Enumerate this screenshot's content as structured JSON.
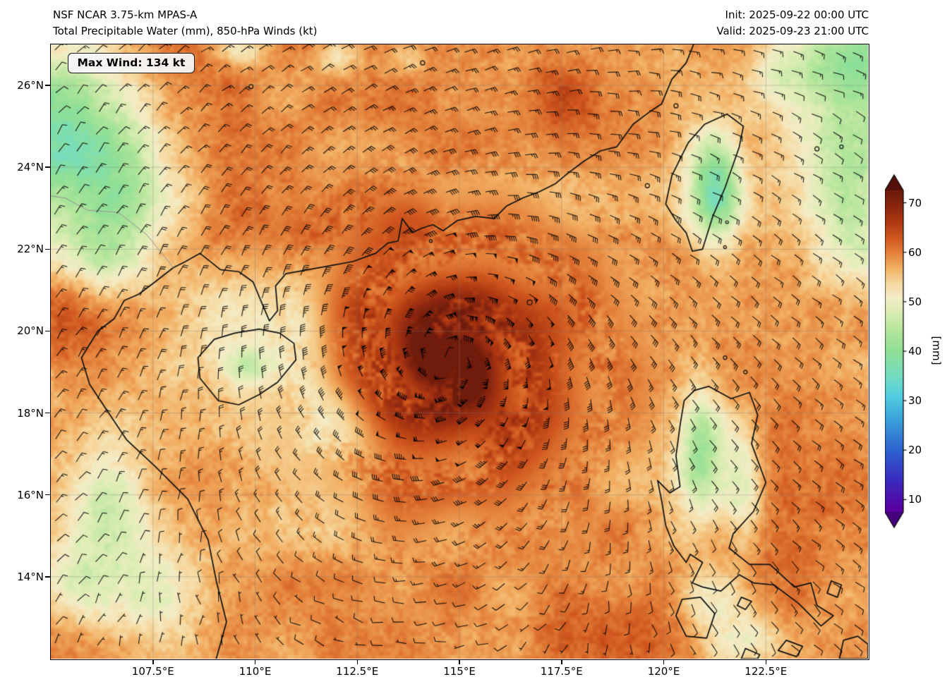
{
  "header": {
    "model_line": "NSF NCAR 3.75-km MPAS-A",
    "variable_line": "Total Precipitable Water (mm), 850-hPa Winds (kt)",
    "init_line": "Init: 2025-09-22 00:00 UTC",
    "valid_line": "Valid: 2025-09-23 21:00 UTC"
  },
  "badge": {
    "max_wind_label": "Max Wind: 134 kt"
  },
  "axes": {
    "lat_ticks": [
      {
        "value": 26,
        "label": "26°N"
      },
      {
        "value": 24,
        "label": "24°N"
      },
      {
        "value": 22,
        "label": "22°N"
      },
      {
        "value": 20,
        "label": "20°N"
      },
      {
        "value": 18,
        "label": "18°N"
      },
      {
        "value": 16,
        "label": "16°N"
      },
      {
        "value": 14,
        "label": "14°N"
      }
    ],
    "lon_ticks": [
      {
        "value": 107.5,
        "label": "107.5°E"
      },
      {
        "value": 110,
        "label": "110°E"
      },
      {
        "value": 112.5,
        "label": "112.5°E"
      },
      {
        "value": 115,
        "label": "115°E"
      },
      {
        "value": 117.5,
        "label": "117.5°E"
      },
      {
        "value": 120,
        "label": "120°E"
      },
      {
        "value": 122.5,
        "label": "122.5°E"
      }
    ]
  },
  "colorbar": {
    "unit_label": "[mm]",
    "range": [
      7.5,
      72.5
    ],
    "ticks": [
      {
        "value": 70,
        "label": "70"
      },
      {
        "value": 60,
        "label": "60"
      },
      {
        "value": 50,
        "label": "50"
      },
      {
        "value": 40,
        "label": "40"
      },
      {
        "value": 30,
        "label": "30"
      },
      {
        "value": 20,
        "label": "20"
      },
      {
        "value": 10,
        "label": "10"
      }
    ],
    "over_color": "#541109",
    "under_color": "#47007e"
  },
  "chart_data": {
    "type": "heatmap",
    "title": "Total Precipitable Water (mm), 850-hPa Winds (kt)",
    "model": "NSF NCAR 3.75-km MPAS-A",
    "init_utc": "2025-09-22 00:00 UTC",
    "valid_utc": "2025-09-23 21:00 UTC",
    "units": "mm",
    "wind_level": "850-hPa",
    "wind_units": "kt",
    "max_wind_kt": 134,
    "lon_range_e": [
      105,
      125
    ],
    "lat_range_n": [
      12,
      27
    ],
    "lon_tick_values_e": [
      107.5,
      110,
      112.5,
      115,
      117.5,
      120,
      122.5
    ],
    "lat_tick_values_n": [
      14,
      16,
      18,
      20,
      22,
      24,
      26
    ],
    "colorbar_ticks_mm": [
      10,
      20,
      30,
      40,
      50,
      60,
      70
    ],
    "colormap_stops": [
      [
        8,
        "#5a00a0"
      ],
      [
        14,
        "#3b2bbf"
      ],
      [
        20,
        "#2e62cf"
      ],
      [
        26,
        "#39a0da"
      ],
      [
        31,
        "#52cfe0"
      ],
      [
        35,
        "#74ddc2"
      ],
      [
        40,
        "#90df96"
      ],
      [
        44,
        "#b2e59b"
      ],
      [
        48,
        "#dcedb4"
      ],
      [
        51,
        "#f4ecc6"
      ],
      [
        54,
        "#f6d79c"
      ],
      [
        57,
        "#f2ae62"
      ],
      [
        60,
        "#e4813b"
      ],
      [
        63,
        "#d0571f"
      ],
      [
        66,
        "#b03a12"
      ],
      [
        69,
        "#8f2810"
      ],
      [
        72,
        "#6f1c0d"
      ]
    ],
    "storm_center_approx": {
      "lon_e": 114.7,
      "lat_n": 19.3
    },
    "field_summary": [
      "Intense tropical cyclone with TPW exceeding 70 mm centered near 114.7°E, 19.3°N over the northern South China Sea",
      "Broad 55-65 mm moisture envelope with spiral banding around the cyclone",
      "Drier air (30-45 mm) over NW Vietnam/Guangxi highlands, Taiwan Central Range, Luzon Cordillera, Vietnam highlands, and seas east of Taiwan",
      "850-hPa wind barbs circulate cyclonically around the center; maximum wind 134 kt"
    ]
  }
}
